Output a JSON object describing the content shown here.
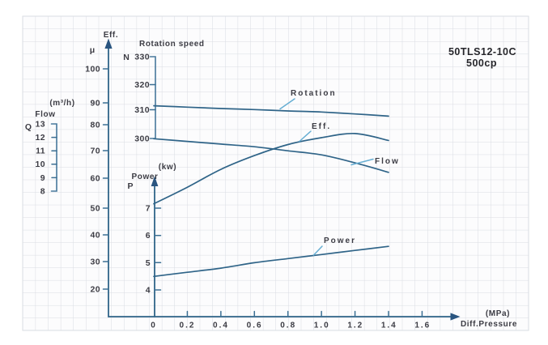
{
  "title": {
    "line1": "50TLS12-10C",
    "line2": "500cp"
  },
  "axes": {
    "eff": {
      "label": "Eff.",
      "symbol": "μ",
      "ticks": [
        "100",
        "90",
        "80",
        "70",
        "60",
        "50",
        "40",
        "30",
        "20"
      ]
    },
    "flow": {
      "label": "Flow",
      "unit": "(m³/h)",
      "symbol": "Q",
      "ticks": [
        "13",
        "12",
        "11",
        "10",
        "9",
        "8"
      ]
    },
    "rotation": {
      "label": "Rotation speed",
      "symbol": "N",
      "ticks": [
        "330",
        "320",
        "310",
        "300"
      ]
    },
    "power": {
      "label": "Power",
      "unit": "(kw)",
      "symbol": "P",
      "ticks": [
        "7",
        "6",
        "5",
        "4"
      ]
    },
    "x": {
      "label": "Diff.Pressure",
      "unit": "(MPa)",
      "ticks": [
        "0",
        "0.2",
        "0.4",
        "0.6",
        "0.8",
        "1.0",
        "1.2",
        "1.4",
        "1.6"
      ]
    }
  },
  "curve_labels": {
    "rotation": "Rotation",
    "eff": "Eff.",
    "flow": "Flow",
    "power": "Power"
  },
  "chart_data": {
    "type": "line",
    "title": "50TLS12-10C 500cp pump performance curves",
    "xlabel": "Diff.Pressure (MPa)",
    "x_range": [
      0,
      1.6
    ],
    "grid": true,
    "x": [
      0,
      0.2,
      0.4,
      0.6,
      0.8,
      1.0,
      1.2,
      1.4
    ],
    "series": [
      {
        "name": "Rotation speed",
        "axis_symbol": "N",
        "axis_range": [
          300,
          330
        ],
        "values": [
          312,
          311.5,
          311,
          310.6,
          310.1,
          309.7,
          309,
          308.2
        ]
      },
      {
        "name": "Eff.",
        "axis_symbol": "μ",
        "axis_range": [
          20,
          100
        ],
        "values": [
          51,
          57,
          63.5,
          68.5,
          72.5,
          75,
          76.5,
          74
        ]
      },
      {
        "name": "Flow",
        "axis_symbol": "Q (m³/h)",
        "axis_range": [
          8,
          13
        ],
        "values": [
          11.9,
          11.7,
          11.5,
          11.3,
          11.0,
          10.7,
          10.1,
          9.4
        ]
      },
      {
        "name": "Power",
        "axis_symbol": "P (kw)",
        "axis_range": [
          4,
          7
        ],
        "values": [
          4.5,
          4.65,
          4.8,
          5.0,
          5.15,
          5.3,
          5.45,
          5.6
        ]
      }
    ]
  }
}
